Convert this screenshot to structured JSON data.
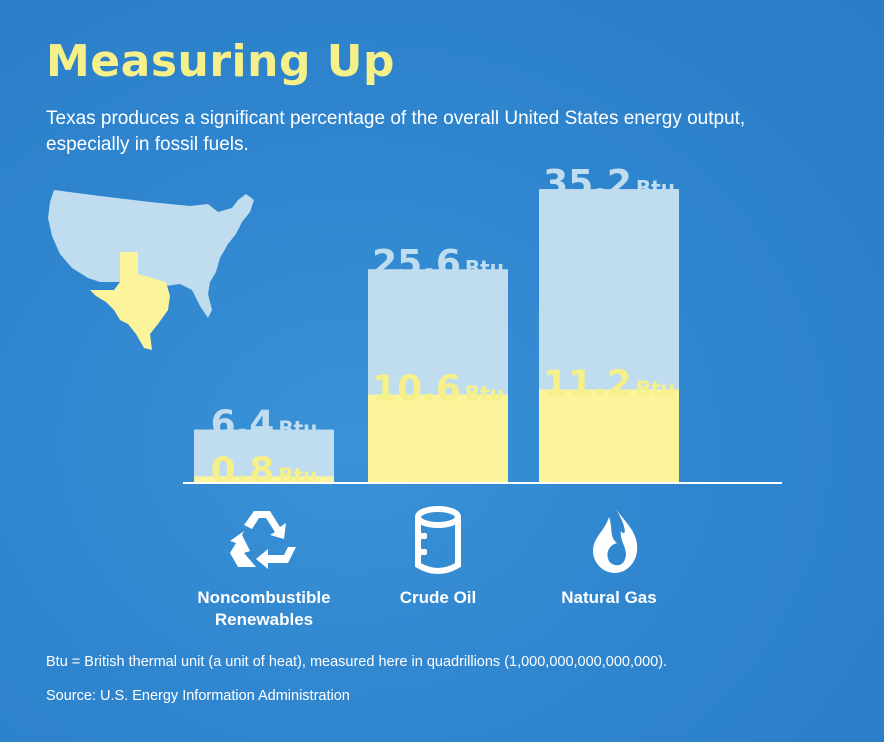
{
  "title": "Measuring Up",
  "subtitle": "Texas produces a significant percentage of the overall United States energy output, especially in fossil fuels.",
  "unit": "Btu",
  "footnote": "Btu = British thermal unit (a unit of heat), measured here in quadrillions (1,000,000,000,000,000).",
  "source": "Source: U.S. Energy Information Administration",
  "icons": [
    "recycle-icon",
    "oil-barrel-icon",
    "gas-flame-icon",
    "us-map-texas-highlight"
  ],
  "colors": {
    "background": "#2f86cf",
    "title": "#f6f08a",
    "total_bar": "#c0dcef",
    "texas_bar": "#fbf49a",
    "map_us": "#c0dcef",
    "map_texas": "#fbf49a"
  },
  "chart_data": {
    "type": "bar",
    "stacked_overlay": true,
    "categories": [
      "Noncombustible Renewables",
      "Crude Oil",
      "Natural Gas"
    ],
    "category_lines": [
      [
        "Noncombustible",
        "Renewables"
      ],
      [
        "Crude Oil"
      ],
      [
        "Natural Gas"
      ]
    ],
    "series": [
      {
        "values": [
          6.4,
          25.6,
          35.2
        ],
        "labels": [
          "6.4",
          "25.6",
          "35.2"
        ]
      },
      {
        "values": [
          0.8,
          10.6,
          11.2
        ],
        "labels": [
          "0.8",
          "10.6",
          "11.2"
        ]
      }
    ],
    "ylim": [
      0,
      40
    ],
    "grid": false
  }
}
